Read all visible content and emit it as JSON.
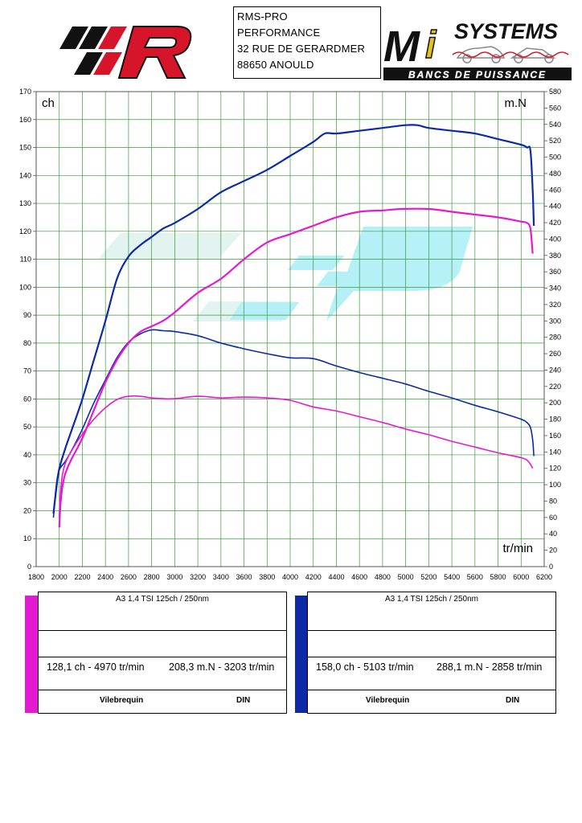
{
  "header": {
    "address_lines": [
      "RMS-PRO",
      "PERFORMANCE",
      "32 RUE DE GERARDMER",
      "88650 ANOULD"
    ],
    "right_logo_text": "SYSTEMS",
    "right_logo_subtitle": "BANCS DE PUISSANCE",
    "right_logo_letters": [
      "M",
      "i"
    ]
  },
  "colors": {
    "run_magenta": "#e619d2",
    "run_blue": "#0c2aa5",
    "grid": "#3a9a3a",
    "watermark": "#5fe0ef"
  },
  "chart_data": {
    "type": "line",
    "x_label": "tr/min",
    "y_left_label": "ch",
    "y_right_label": "m.N",
    "xlim": [
      1800,
      6200
    ],
    "x_ticks": [
      1800,
      2000,
      2200,
      2400,
      2600,
      2800,
      3000,
      3200,
      3400,
      3600,
      3800,
      4000,
      4200,
      4400,
      4600,
      4800,
      5000,
      5200,
      5400,
      5600,
      5800,
      6000,
      6200
    ],
    "y_left_range": [
      0,
      170
    ],
    "y_left_ticks": [
      0,
      10,
      20,
      30,
      40,
      50,
      60,
      70,
      80,
      90,
      100,
      110,
      120,
      130,
      140,
      150,
      160,
      170
    ],
    "y_right_range": [
      0,
      580
    ],
    "y_right_ticks": [
      0,
      20,
      40,
      60,
      80,
      100,
      120,
      140,
      160,
      180,
      200,
      220,
      240,
      260,
      280,
      300,
      320,
      340,
      360,
      380,
      400,
      420,
      440,
      460,
      480,
      500,
      520,
      540,
      560,
      580
    ],
    "grid": true,
    "series": [
      {
        "name": "",
        "quantity": "power",
        "unit": "ch",
        "color": "#0c2aa5",
        "x": [
          1950,
          1975,
          2000,
          2050,
          2100,
          2200,
          2300,
          2400,
          2500,
          2600,
          2700,
          2800,
          2900,
          3000,
          3200,
          3400,
          3600,
          3800,
          4000,
          4200,
          4300,
          4400,
          4600,
          4800,
          5000,
          5100,
          5200,
          5400,
          5600,
          5800,
          6000,
          6050,
          6080,
          6100,
          6110
        ],
        "y": [
          19,
          28,
          35,
          42,
          48,
          60,
          74,
          88,
          103,
          111,
          115,
          118,
          121,
          123,
          128,
          134,
          138,
          142,
          147,
          152,
          155,
          155,
          156,
          157,
          158,
          158,
          157,
          156,
          155,
          153,
          151,
          150,
          149,
          135,
          122
        ]
      },
      {
        "name": "",
        "quantity": "torque",
        "unit": "m.N",
        "color": "#0c2aa5",
        "x": [
          1950,
          1975,
          2000,
          2050,
          2100,
          2200,
          2300,
          2400,
          2500,
          2600,
          2700,
          2800,
          2900,
          3000,
          3200,
          3400,
          3600,
          3800,
          4000,
          4200,
          4400,
          4600,
          4800,
          5000,
          5200,
          5400,
          5600,
          5800,
          6000,
          6050,
          6080,
          6100,
          6110
        ],
        "y": [
          60,
          100,
          118,
          128,
          140,
          168,
          200,
          228,
          255,
          274,
          284,
          289,
          288,
          287,
          282,
          273,
          266,
          260,
          255,
          254,
          245,
          237,
          230,
          223,
          214,
          206,
          197,
          189,
          180,
          176,
          170,
          155,
          135
        ]
      },
      {
        "name": "",
        "quantity": "power",
        "unit": "ch",
        "color": "#e619d2",
        "x": [
          2000,
          2010,
          2025,
          2050,
          2100,
          2200,
          2300,
          2400,
          2500,
          2600,
          2700,
          2800,
          2900,
          3000,
          3200,
          3400,
          3600,
          3800,
          4000,
          4200,
          4400,
          4600,
          4800,
          4970,
          5200,
          5400,
          5600,
          5800,
          6000,
          6050,
          6080,
          6100
        ],
        "y": [
          14,
          22,
          28,
          33,
          38,
          46,
          56,
          66,
          74,
          80,
          84,
          86,
          88,
          91,
          98,
          103,
          110,
          116,
          119,
          122,
          125,
          127,
          127.5,
          128,
          128,
          127,
          126,
          125,
          123.5,
          123,
          121,
          112
        ]
      },
      {
        "name": "",
        "quantity": "torque",
        "unit": "m.N",
        "color": "#e619d2",
        "x": [
          2000,
          2010,
          2025,
          2050,
          2100,
          2200,
          2300,
          2400,
          2500,
          2600,
          2700,
          2800,
          2900,
          3000,
          3203,
          3400,
          3600,
          3800,
          4000,
          4200,
          4400,
          4600,
          4800,
          5000,
          5200,
          5400,
          5600,
          5800,
          6000,
          6050,
          6080,
          6100
        ],
        "y": [
          60,
          90,
          110,
          125,
          140,
          162,
          180,
          194,
          204,
          208,
          208,
          206,
          205,
          205,
          208,
          206,
          207,
          206,
          203,
          195,
          190,
          183,
          176,
          168,
          161,
          153,
          146,
          139,
          133,
          130,
          125,
          120
        ]
      }
    ]
  },
  "panels": [
    {
      "color": "#e619d2",
      "title": "A3  1,4 TSI 125ch / 250nm",
      "power": "128,1 ch - 4970 tr/min",
      "torque": "208,3 m.N - 3203 tr/min",
      "mode": "Vilebrequin",
      "norm": "DIN"
    },
    {
      "color": "#0c2aa5",
      "title": "A3  1,4 TSI 125ch / 250nm",
      "power": "158,0 ch - 5103 tr/min",
      "torque": "288,1 m.N - 2858 tr/min",
      "mode": "Vilebrequin",
      "norm": "DIN"
    }
  ]
}
